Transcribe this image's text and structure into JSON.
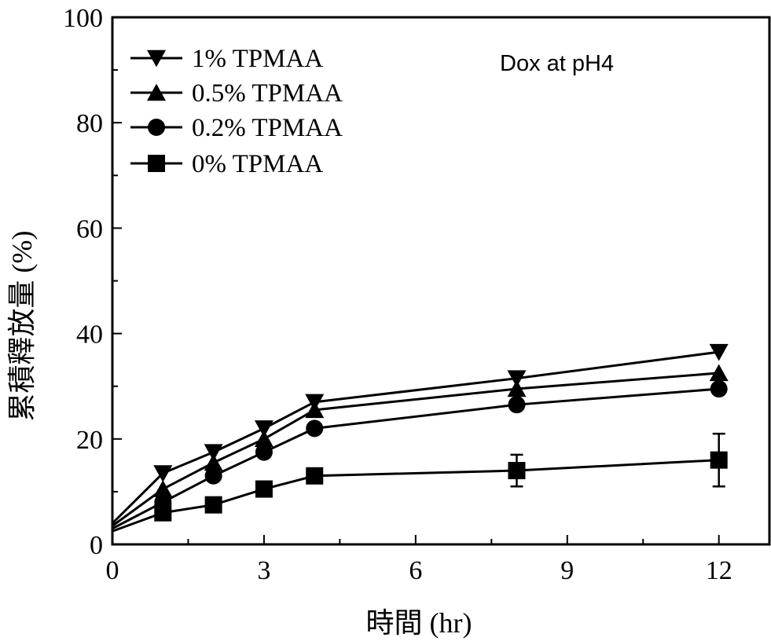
{
  "chart_data": {
    "type": "line",
    "title": "",
    "annotation": "Dox at pH4",
    "xlabel": "時間 (hr)",
    "ylabel": "累積釋放量 (%)",
    "xlim": [
      0,
      13
    ],
    "ylim": [
      0,
      100
    ],
    "x_ticks": [
      "0",
      "3",
      "6",
      "9",
      "12"
    ],
    "y_ticks": [
      "0",
      "20",
      "40",
      "60",
      "80",
      "100"
    ],
    "x_tick_values": [
      0,
      3,
      6,
      9,
      12
    ],
    "y_tick_values": [
      0,
      20,
      40,
      60,
      80,
      100
    ],
    "grid": false,
    "legend_position": "top-left",
    "series": [
      {
        "name": "1% TPMAA",
        "marker": "triangle-down",
        "x": [
          0,
          1,
          2,
          3,
          4,
          8,
          12
        ],
        "y": [
          4.0,
          13.5,
          17.5,
          22.0,
          27.0,
          31.5,
          36.5
        ]
      },
      {
        "name": "0.5% TPMAA",
        "marker": "triangle-up",
        "x": [
          0,
          1,
          2,
          3,
          4,
          8,
          12
        ],
        "y": [
          3.5,
          10.5,
          15.5,
          20.0,
          25.5,
          29.5,
          32.5
        ]
      },
      {
        "name": "0.2% TPMAA",
        "marker": "circle",
        "x": [
          0,
          1,
          2,
          3,
          4,
          8,
          12
        ],
        "y": [
          3.0,
          8.0,
          13.0,
          17.5,
          22.0,
          26.5,
          29.5
        ]
      },
      {
        "name": "0% TPMAA",
        "marker": "square",
        "x": [
          0,
          1,
          2,
          3,
          4,
          8,
          12
        ],
        "y": [
          2.5,
          6.0,
          7.5,
          10.5,
          13.0,
          14.0,
          16.0
        ],
        "error": [
          0,
          0,
          0,
          0,
          0,
          3.0,
          5.0
        ]
      }
    ]
  }
}
